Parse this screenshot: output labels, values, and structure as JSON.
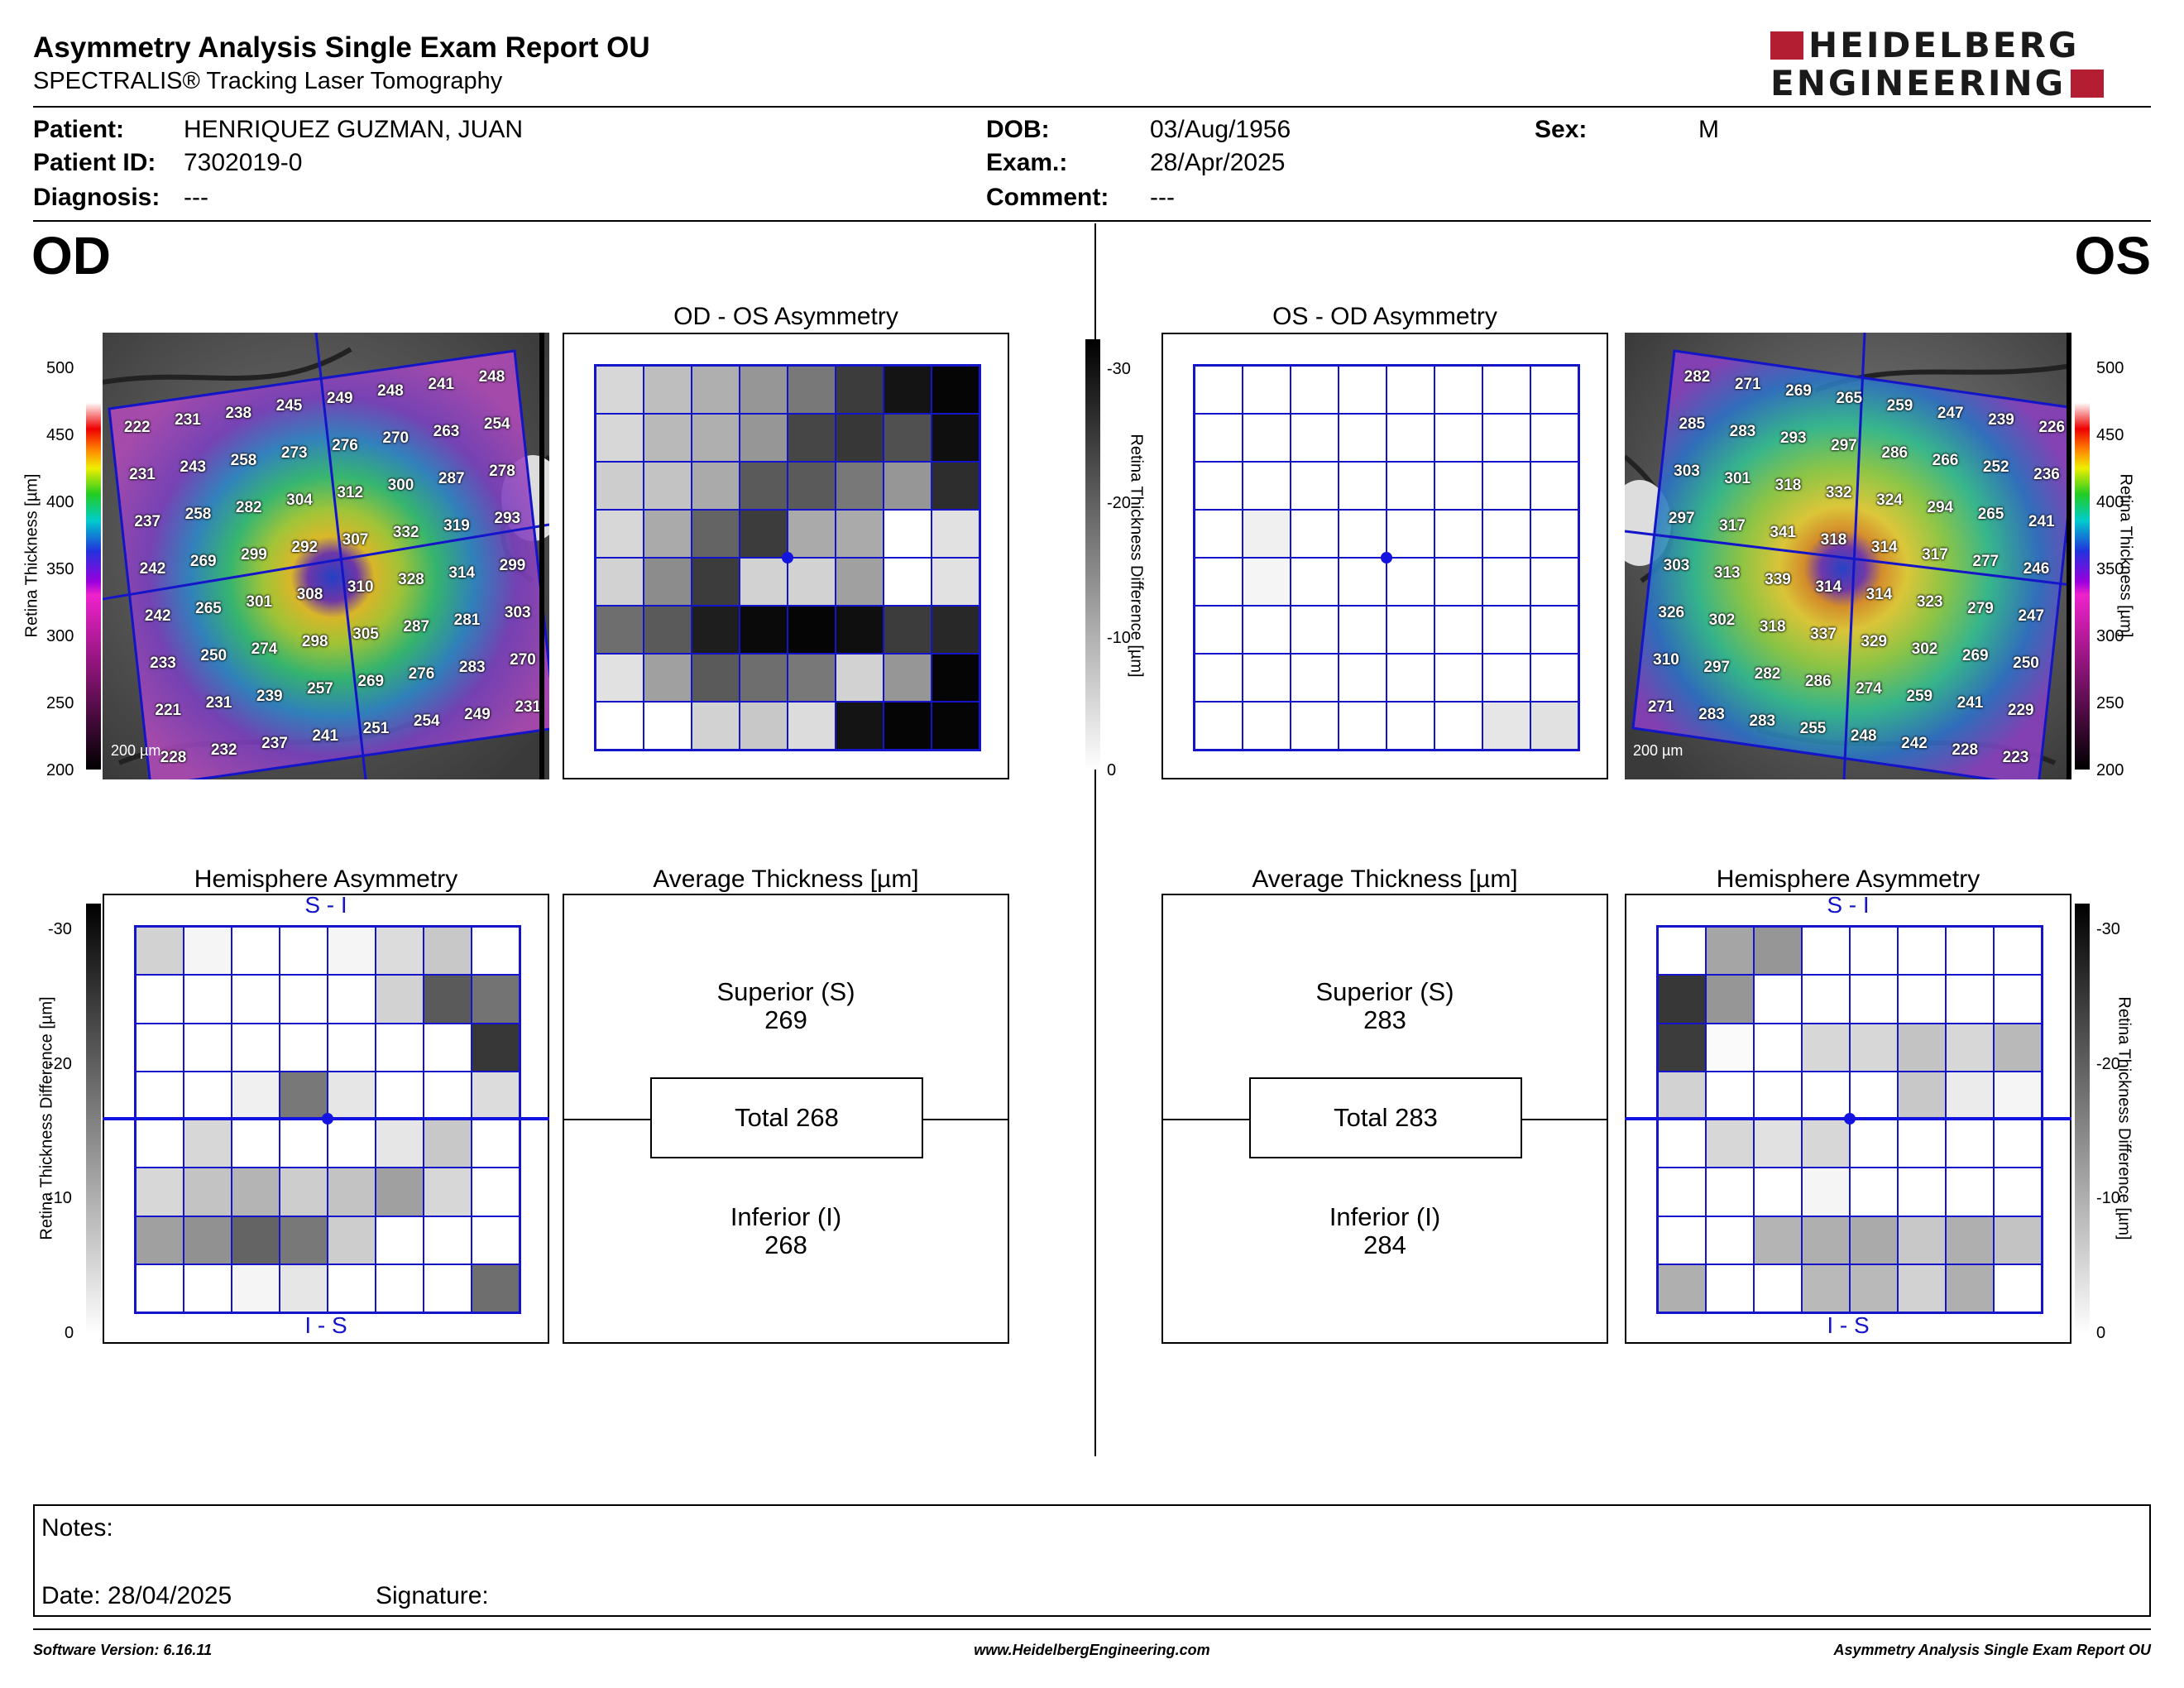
{
  "header": {
    "title": "Asymmetry Analysis Single Exam Report OU",
    "subtitle": "SPECTRALIS® Tracking Laser Tomography",
    "logo_line1": "HEIDELBERG",
    "logo_line2": "ENGINEERING"
  },
  "patient": {
    "patient_label": "Patient:",
    "patient_value": "HENRIQUEZ GUZMAN, JUAN",
    "id_label": "Patient ID:",
    "id_value": "7302019-0",
    "diagnosis_label": "Diagnosis:",
    "diagnosis_value": "---",
    "dob_label": "DOB:",
    "dob_value": "03/Aug/1956",
    "exam_label": "Exam.:",
    "exam_value": "28/Apr/2025",
    "comment_label": "Comment:",
    "comment_value": "---",
    "sex_label": "Sex:",
    "sex_value": "M"
  },
  "od": {
    "eye_label": "OD",
    "asym_title": "OD - OS Asymmetry",
    "hemi_title": "Hemisphere Asymmetry",
    "avg_title": "Average Thickness [µm]",
    "hemi_top": "S - I",
    "hemi_bottom": "I - S",
    "superior_label": "Superior (S)",
    "superior_value": "269",
    "total_label": "Total 268",
    "inferior_label": "Inferior (I)",
    "inferior_value": "268",
    "scale_label": "200 µm",
    "thickness_grid": [
      [
        222,
        231,
        238,
        245,
        249,
        248,
        241,
        248
      ],
      [
        231,
        243,
        258,
        273,
        276,
        270,
        263,
        254
      ],
      [
        237,
        258,
        282,
        304,
        312,
        300,
        287,
        278
      ],
      [
        242,
        269,
        299,
        292,
        307,
        332,
        319,
        293
      ],
      [
        242,
        265,
        301,
        308,
        310,
        328,
        314,
        299
      ],
      [
        233,
        250,
        274,
        298,
        305,
        287,
        281,
        303
      ],
      [
        221,
        231,
        239,
        257,
        269,
        276,
        283,
        270
      ],
      [
        228,
        232,
        237,
        241,
        251,
        254,
        249,
        231
      ]
    ],
    "asym_shades": [
      [
        215,
        190,
        175,
        150,
        120,
        60,
        20,
        5
      ],
      [
        215,
        185,
        175,
        150,
        70,
        55,
        80,
        15
      ],
      [
        205,
        195,
        170,
        90,
        90,
        120,
        150,
        45
      ],
      [
        215,
        170,
        100,
        60,
        170,
        170,
        255,
        225
      ],
      [
        210,
        140,
        60,
        210,
        210,
        160,
        255,
        225
      ],
      [
        110,
        90,
        30,
        10,
        5,
        15,
        60,
        40
      ],
      [
        225,
        160,
        90,
        110,
        120,
        210,
        150,
        5
      ],
      [
        255,
        255,
        210,
        200,
        220,
        20,
        5,
        5
      ]
    ],
    "hemi_shades": [
      [
        210,
        245,
        255,
        255,
        245,
        220,
        200,
        255
      ],
      [
        255,
        255,
        255,
        255,
        255,
        210,
        90,
        115
      ],
      [
        255,
        255,
        255,
        255,
        255,
        255,
        255,
        55
      ],
      [
        255,
        255,
        240,
        120,
        230,
        255,
        255,
        220
      ],
      [
        255,
        215,
        255,
        255,
        255,
        230,
        200,
        255
      ],
      [
        215,
        195,
        180,
        205,
        195,
        160,
        215,
        255
      ],
      [
        160,
        145,
        100,
        120,
        205,
        255,
        255,
        255
      ],
      [
        255,
        255,
        245,
        230,
        255,
        255,
        255,
        110
      ]
    ]
  },
  "os": {
    "eye_label": "OS",
    "asym_title": "OS - OD Asymmetry",
    "hemi_title": "Hemisphere Asymmetry",
    "avg_title": "Average Thickness [µm]",
    "hemi_top": "S - I",
    "hemi_bottom": "I - S",
    "superior_label": "Superior (S)",
    "superior_value": "283",
    "total_label": "Total 283",
    "inferior_label": "Inferior (I)",
    "inferior_value": "284",
    "scale_label": "200 µm",
    "thickness_grid": [
      [
        282,
        271,
        269,
        265,
        259,
        247,
        239,
        226
      ],
      [
        285,
        283,
        293,
        297,
        286,
        266,
        252,
        236
      ],
      [
        303,
        301,
        318,
        332,
        324,
        294,
        265,
        241
      ],
      [
        297,
        317,
        341,
        318,
        314,
        317,
        277,
        246
      ],
      [
        303,
        313,
        339,
        314,
        314,
        323,
        279,
        247
      ],
      [
        326,
        302,
        318,
        337,
        329,
        302,
        269,
        250
      ],
      [
        310,
        297,
        282,
        286,
        274,
        259,
        241,
        229
      ],
      [
        271,
        283,
        283,
        255,
        248,
        242,
        228,
        223
      ]
    ],
    "asym_shades": [
      [
        255,
        255,
        255,
        255,
        255,
        255,
        255,
        255
      ],
      [
        255,
        255,
        255,
        255,
        255,
        255,
        255,
        255
      ],
      [
        255,
        255,
        255,
        255,
        255,
        255,
        255,
        255
      ],
      [
        255,
        240,
        255,
        255,
        255,
        255,
        255,
        255
      ],
      [
        255,
        245,
        255,
        255,
        255,
        255,
        255,
        255
      ],
      [
        255,
        255,
        255,
        255,
        255,
        255,
        255,
        255
      ],
      [
        255,
        255,
        255,
        255,
        255,
        255,
        255,
        255
      ],
      [
        255,
        255,
        255,
        255,
        255,
        255,
        230,
        225
      ]
    ],
    "hemi_shades": [
      [
        255,
        165,
        150,
        255,
        255,
        255,
        255,
        255
      ],
      [
        55,
        150,
        255,
        255,
        255,
        255,
        255,
        255
      ],
      [
        60,
        250,
        255,
        215,
        215,
        195,
        215,
        185
      ],
      [
        210,
        255,
        255,
        255,
        255,
        200,
        235,
        245
      ],
      [
        255,
        215,
        225,
        215,
        255,
        255,
        255,
        255
      ],
      [
        255,
        255,
        255,
        245,
        255,
        255,
        255,
        255
      ],
      [
        255,
        255,
        180,
        175,
        170,
        200,
        175,
        195
      ],
      [
        175,
        255,
        255,
        185,
        185,
        210,
        175,
        255
      ]
    ]
  },
  "colorbar": {
    "thickness_label": "Retina Thickness [µm]",
    "thickness_ticks": [
      "500",
      "450",
      "400",
      "350",
      "300",
      "250",
      "200"
    ],
    "diff_label": "Retina Thickness Difference [µm]",
    "diff_ticks": [
      "-30",
      "-20",
      "-10",
      "0"
    ]
  },
  "notes": {
    "notes_label": "Notes:",
    "date_label": "Date: 28/04/2025",
    "signature_label": "Signature:"
  },
  "footer": {
    "software": "Software Version: 6.16.11",
    "website": "www.HeidelbergEngineering.com",
    "report": "Asymmetry Analysis Single Exam Report OU"
  }
}
